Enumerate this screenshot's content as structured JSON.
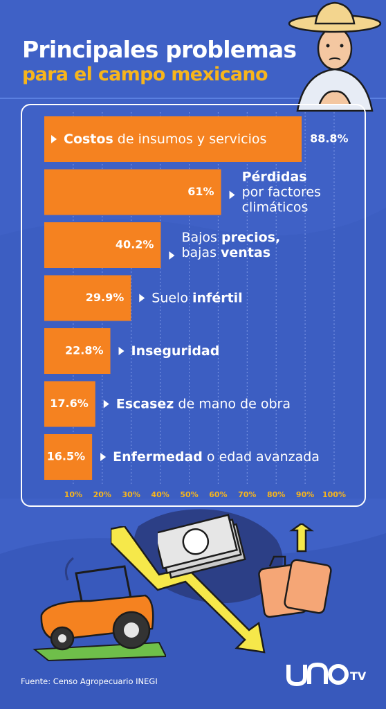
{
  "title_line1": "Principales problemas",
  "title_line2": "para el campo mexicano",
  "source": "Fuente: Censo Agropecuario INEGI",
  "logo_text": "UNOTV",
  "colors": {
    "background": "#3f61c6",
    "bar": "#f58220",
    "title_accent": "#f7b51c",
    "text": "#ffffff"
  },
  "chart_data": {
    "type": "bar",
    "orientation": "horizontal",
    "xlim": [
      0,
      100
    ],
    "x_ticks": [
      "10%",
      "20%",
      "30%",
      "40%",
      "50%",
      "60%",
      "70%",
      "80%",
      "90%",
      "100%"
    ],
    "grid": true,
    "series": [
      {
        "values": [
          88.8,
          61,
          40.2,
          29.9,
          22.8,
          17.6,
          16.5
        ],
        "value_labels": [
          "88.8%",
          "61%",
          "40.2%",
          "29.9%",
          "22.8%",
          "17.6%",
          "16.5%"
        ]
      }
    ],
    "categories": [
      [
        {
          "t": "Costos",
          "b": true
        },
        {
          "t": " de insumos y servicios",
          "b": false
        }
      ],
      [
        {
          "t": "Pérdidas",
          "b": true
        },
        {
          "t": "\n",
          "b": false
        },
        {
          "t": "por factores",
          "b": false
        },
        {
          "t": "\n",
          "b": false
        },
        {
          "t": "climáticos",
          "b": false
        }
      ],
      [
        {
          "t": "Bajos ",
          "b": false
        },
        {
          "t": "precios,",
          "b": true
        },
        {
          "t": "\n",
          "b": false
        },
        {
          "t": "bajas ",
          "b": false
        },
        {
          "t": "ventas",
          "b": true
        }
      ],
      [
        {
          "t": "Suelo ",
          "b": false
        },
        {
          "t": "infértil",
          "b": true
        }
      ],
      [
        {
          "t": "Inseguridad",
          "b": true
        }
      ],
      [
        {
          "t": "Escasez",
          "b": true
        },
        {
          "t": " de mano de obra",
          "b": false
        }
      ],
      [
        {
          "t": "Enfermedad",
          "b": true
        },
        {
          "t": " o edad avanzada",
          "b": false
        }
      ]
    ]
  }
}
